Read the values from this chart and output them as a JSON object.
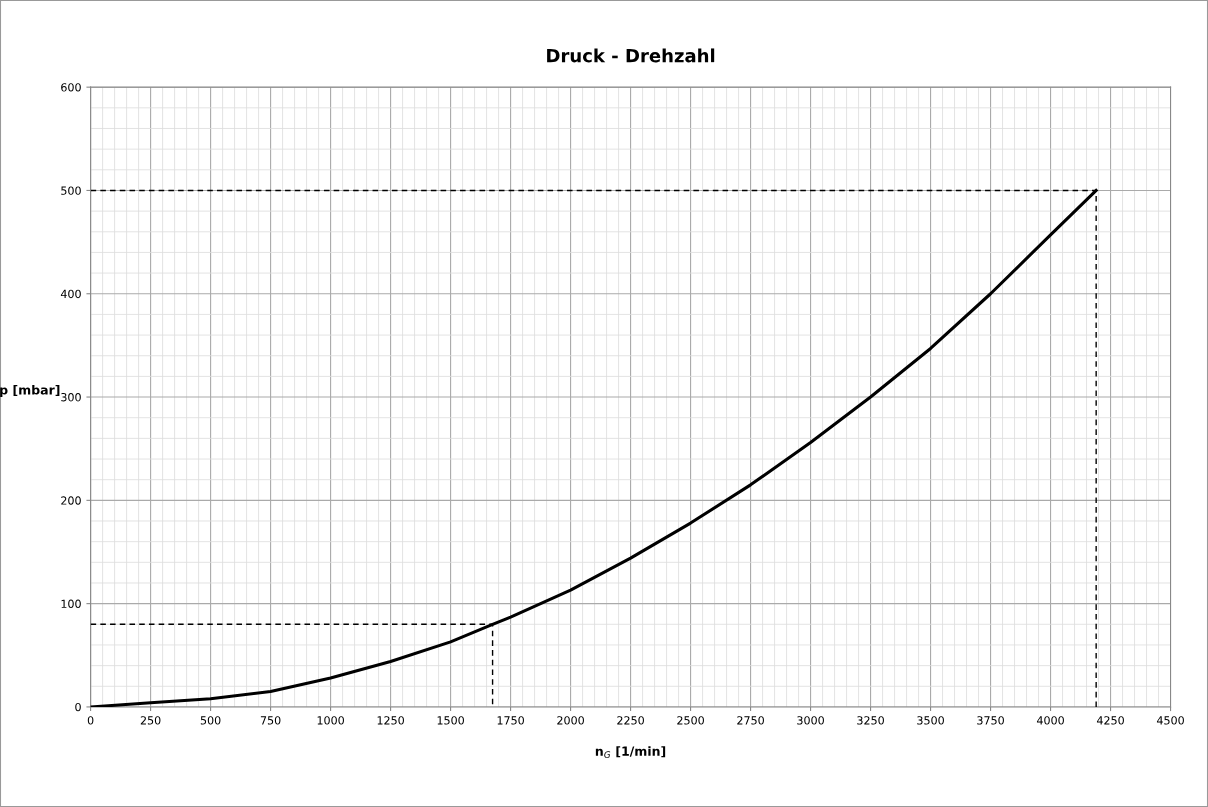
{
  "chart_data": {
    "type": "line",
    "title": "Druck - Drehzahl",
    "xlabel": "n$_{G}$ [1/min]",
    "ylabel": "p [mbar]",
    "xlim": [
      0,
      4500
    ],
    "xticks": [
      0,
      250,
      500,
      750,
      1000,
      1250,
      1500,
      1750,
      2000,
      2250,
      2500,
      2750,
      3000,
      3250,
      3500,
      3750,
      4000,
      4250,
      4500
    ],
    "ylim": [
      0,
      600
    ],
    "yticks": [
      0,
      100,
      200,
      300,
      400,
      500,
      600
    ],
    "grid": true,
    "legend": false,
    "marker": "none",
    "series": [
      {
        "color": "#000000",
        "line_style": "solid",
        "x": [
          0,
          250,
          500,
          750,
          1000,
          1250,
          1500,
          1675,
          1750,
          2000,
          2250,
          2500,
          2750,
          3000,
          3250,
          3500,
          3750,
          4000,
          4190
        ],
        "values": [
          0,
          4,
          8,
          15,
          28,
          44,
          63,
          80,
          87,
          113,
          144,
          178,
          215,
          256,
          300,
          347,
          400,
          457,
          500
        ]
      },
      {
        "color": "#000000",
        "line_style": "dashed",
        "x": [
          0,
          4190,
          4190
        ],
        "values": [
          500,
          500,
          0
        ]
      },
      {
        "color": "#000000",
        "line_style": "dashed",
        "x": [
          0,
          1675,
          1675
        ],
        "values": [
          80,
          80,
          0
        ]
      }
    ]
  }
}
